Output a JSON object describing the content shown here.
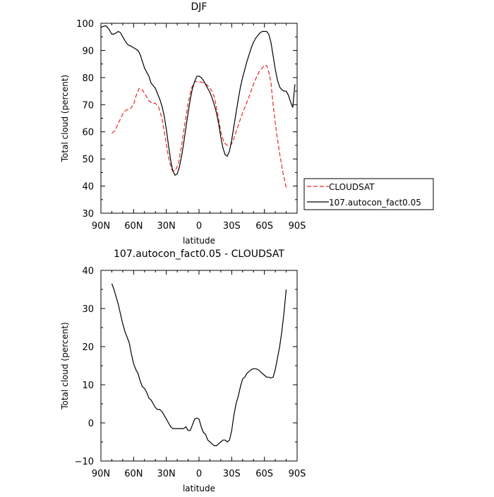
{
  "chart_data": [
    {
      "type": "line",
      "title": "DJF",
      "xlabel": "latitude",
      "ylabel": "Total cloud (percent)",
      "xlim": [
        90,
        -90
      ],
      "ylim": [
        30,
        100
      ],
      "xticks": [
        90,
        60,
        30,
        0,
        -30,
        -60,
        -90
      ],
      "xtick_labels": [
        "90N",
        "60N",
        "30N",
        "0",
        "30S",
        "60S",
        "90S"
      ],
      "yticks": [
        30,
        40,
        50,
        60,
        70,
        80,
        90,
        100
      ],
      "ytick_labels": [
        "30",
        "40",
        "50",
        "60",
        "70",
        "80",
        "90",
        "100"
      ],
      "legend": "right",
      "series": [
        {
          "name": "CLOUDSAT",
          "color": "#e8262a",
          "style": "dashed",
          "x": [
            80,
            77,
            73,
            70,
            67,
            63,
            60,
            58,
            55,
            52,
            49,
            46,
            43,
            40,
            37,
            34,
            31,
            28,
            25,
            22,
            19,
            16,
            13,
            10,
            7,
            4,
            1,
            -2,
            -5,
            -8,
            -11,
            -14,
            -17,
            -20,
            -23,
            -26,
            -29,
            -31,
            -34,
            -37,
            -40,
            -43,
            -46,
            -49,
            -52,
            -55,
            -58,
            -60,
            -62,
            -64,
            -66,
            -68,
            -71,
            -74,
            -77,
            -80
          ],
          "y": [
            59.5,
            60.5,
            64,
            66.5,
            68,
            68.5,
            70,
            73,
            76,
            75.5,
            73.5,
            71.5,
            70.5,
            70.5,
            69,
            65,
            58,
            50.5,
            46,
            45.5,
            48,
            55,
            63,
            70.5,
            76,
            78.5,
            78.5,
            78.3,
            78,
            77,
            75.5,
            73,
            67,
            60,
            56,
            55,
            55,
            56.5,
            60,
            63.5,
            67,
            70,
            73,
            76.5,
            79.5,
            82,
            83.5,
            84.5,
            84.5,
            82,
            78,
            70,
            60,
            52,
            45,
            39.5
          ]
        },
        {
          "name": "107.autocon_fact0.05",
          "color": "#000000",
          "style": "solid",
          "x": [
            90,
            87,
            85,
            83,
            80,
            78,
            76,
            74,
            72,
            70,
            67,
            65,
            62,
            60,
            58,
            56,
            54,
            52,
            50,
            48,
            46,
            44,
            42,
            40,
            38,
            36,
            34,
            32,
            30,
            28,
            26,
            24,
            22,
            20,
            18,
            16,
            14,
            12,
            10,
            8,
            6,
            4,
            2,
            0,
            -2,
            -4,
            -6,
            -8,
            -10,
            -12,
            -14,
            -16,
            -18,
            -20,
            -22,
            -24,
            -26,
            -28,
            -30,
            -32,
            -34,
            -36,
            -38,
            -40,
            -42,
            -44,
            -46,
            -48,
            -50,
            -52,
            -54,
            -56,
            -58,
            -60,
            -62,
            -64,
            -66,
            -68,
            -70,
            -72,
            -74,
            -76,
            -78,
            -80,
            -82,
            -84,
            -86,
            -88
          ],
          "y": [
            98.5,
            99,
            99,
            98,
            96,
            96,
            96.5,
            97,
            96.5,
            95,
            93,
            92,
            91.5,
            91,
            90.5,
            90,
            88.5,
            86,
            83.5,
            82,
            80.5,
            78,
            77,
            76,
            74,
            72,
            69.5,
            66,
            61,
            55,
            49.5,
            45.5,
            44,
            44.5,
            47,
            51,
            56,
            61.5,
            67,
            72,
            76,
            78.5,
            80.5,
            80.5,
            80,
            79,
            77.5,
            76,
            74.5,
            72.5,
            70,
            67,
            63,
            58,
            54,
            51.5,
            51,
            53,
            57,
            62,
            67,
            72,
            76.5,
            80,
            83,
            86,
            88.5,
            91,
            93,
            94.5,
            95.5,
            96.5,
            97,
            97,
            97,
            96,
            93,
            88,
            83,
            79,
            76.5,
            75.5,
            75,
            75,
            73.5,
            71,
            69,
            77.5
          ]
        }
      ]
    },
    {
      "type": "line",
      "title": "107.autocon_fact0.05 - CLOUDSAT",
      "xlabel": "latitude",
      "ylabel": "Total cloud (percent)",
      "xlim": [
        90,
        -90
      ],
      "ylim": [
        -10,
        40
      ],
      "xticks": [
        90,
        60,
        30,
        0,
        -30,
        -60,
        -90
      ],
      "xtick_labels": [
        "90N",
        "60N",
        "30N",
        "0",
        "30S",
        "60S",
        "90S"
      ],
      "yticks": [
        -10,
        0,
        10,
        20,
        30,
        40
      ],
      "ytick_labels": [
        "−10",
        "0",
        "10",
        "20",
        "30",
        "40"
      ],
      "series": [
        {
          "color": "#000000",
          "style": "solid",
          "x": [
            80,
            78,
            76,
            74,
            72,
            70,
            68,
            66,
            64,
            62,
            60,
            58,
            56,
            54,
            52,
            50,
            48,
            46,
            44,
            42,
            40,
            38,
            36,
            34,
            32,
            30,
            28,
            26,
            24,
            22,
            20,
            18,
            16,
            14,
            12,
            10,
            8,
            6,
            4,
            2,
            0,
            -2,
            -4,
            -6,
            -8,
            -10,
            -12,
            -14,
            -16,
            -18,
            -20,
            -22,
            -24,
            -26,
            -28,
            -30,
            -32,
            -34,
            -36,
            -38,
            -40,
            -42,
            -44,
            -46,
            -48,
            -50,
            -52,
            -54,
            -56,
            -58,
            -60,
            -62,
            -64,
            -66,
            -68,
            -70,
            -72,
            -74,
            -76,
            -78,
            -80
          ],
          "y": [
            36.5,
            35,
            33,
            31,
            28.5,
            26,
            24,
            22.5,
            21,
            18,
            15.5,
            14,
            13,
            11,
            9.5,
            9,
            8,
            6.5,
            6,
            5,
            4,
            3.5,
            3.5,
            3,
            2,
            1,
            0,
            -1,
            -1.5,
            -1.5,
            -1.5,
            -1.5,
            -1.5,
            -1.5,
            -1,
            -2,
            -2,
            -0.5,
            1,
            1.3,
            1,
            -1,
            -2.5,
            -3,
            -4.5,
            -5,
            -5.5,
            -6,
            -6,
            -5.5,
            -5,
            -4.5,
            -4.5,
            -5,
            -4.5,
            -2,
            2,
            5,
            7,
            9.5,
            11.5,
            12,
            13,
            13.5,
            14,
            14.2,
            14.2,
            14,
            13.5,
            13,
            12.5,
            12,
            12,
            11.8,
            12,
            14,
            17,
            20,
            24,
            29,
            35
          ]
        }
      ]
    }
  ]
}
